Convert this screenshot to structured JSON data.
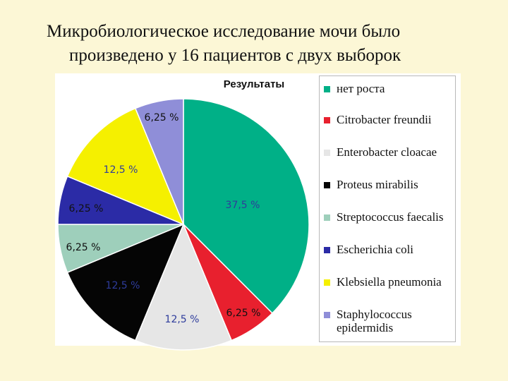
{
  "slide": {
    "title_line1": "Микробиологическое исследование мочи было",
    "title_line2": "произведено у 16 пациентов с двух выборок"
  },
  "chart_data": {
    "type": "pie",
    "title": "Результаты",
    "legend_position": "right",
    "series": [
      {
        "name": "нет роста",
        "value": 37.5,
        "label": "37,5 %",
        "color": "#00b087",
        "label_color": "#2e3c9c"
      },
      {
        "name": "Citrobacter freundii",
        "value": 6.25,
        "label": "6,25 %",
        "color": "#e8202e",
        "label_color": "#111111"
      },
      {
        "name": "Enterobacter cloacae",
        "value": 12.5,
        "label": "12,5 %",
        "color": "#e6e6e6",
        "label_color": "#2e3c9c"
      },
      {
        "name": "Proteus mirabilis",
        "value": 12.5,
        "label": "12,5 %",
        "color": "#050505",
        "label_color": "#2e3c9c"
      },
      {
        "name": "Streptococcus faecalis",
        "value": 6.25,
        "label": "6,25 %",
        "color": "#9ecfbb",
        "label_color": "#111111"
      },
      {
        "name": "Escherichia coli",
        "value": 6.25,
        "label": "6,25 %",
        "color": "#2b2ba6",
        "label_color": "#111111"
      },
      {
        "name": "Klebsiella pneumonia",
        "value": 12.5,
        "label": "12,5 %",
        "color": "#f5f000",
        "label_color": "#2e3c9c"
      },
      {
        "name": "Staphylococcus epidermidis",
        "value": 6.25,
        "label": "6,25 %",
        "color": "#8f8ed8",
        "label_color": "#111111"
      }
    ]
  }
}
